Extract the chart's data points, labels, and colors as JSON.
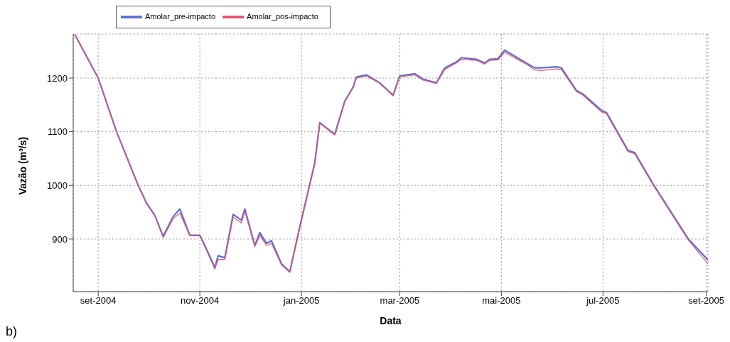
{
  "chart_data": {
    "type": "line",
    "xlabel": "Data",
    "ylabel": "Vazão (m³/s)",
    "x": [
      "2004-08-18",
      "2004-09-01",
      "2004-09-12",
      "2004-09-25",
      "2004-09-30",
      "2004-10-05",
      "2004-10-10",
      "2004-10-16",
      "2004-10-20",
      "2004-10-26",
      "2004-11-01",
      "2004-11-04",
      "2004-11-10",
      "2004-11-12",
      "2004-11-16",
      "2004-11-21",
      "2004-11-26",
      "2004-11-28",
      "2004-12-04",
      "2004-12-07",
      "2004-12-11",
      "2004-12-14",
      "2004-12-20",
      "2004-12-25",
      "2004-12-31",
      "2005-01-09",
      "2005-01-12",
      "2005-01-21",
      "2005-01-27",
      "2005-02-01",
      "2005-02-03",
      "2005-02-09",
      "2005-02-17",
      "2005-02-25",
      "2005-03-01",
      "2005-03-10",
      "2005-03-15",
      "2005-03-23",
      "2005-03-28",
      "2005-04-04",
      "2005-04-07",
      "2005-04-16",
      "2005-04-21",
      "2005-04-24",
      "2005-04-29",
      "2005-05-03",
      "2005-05-16",
      "2005-05-21",
      "2005-05-25",
      "2005-06-03",
      "2005-06-06",
      "2005-06-15",
      "2005-06-19",
      "2005-06-30",
      "2005-07-03",
      "2005-07-16",
      "2005-07-20",
      "2005-07-31",
      "2005-08-21",
      "2005-09-02"
    ],
    "series": [
      {
        "name": "Amolar_pre-impacto",
        "color": "#5b6fd6",
        "values": [
          1281,
          1200,
          1100,
          1000,
          967,
          944,
          905,
          942,
          956,
          907,
          907,
          888,
          847,
          869,
          865,
          946,
          935,
          956,
          888,
          912,
          892,
          897,
          854,
          839,
          923,
          1042,
          1117,
          1095,
          1157,
          1183,
          1202,
          1206,
          1191,
          1168,
          1204,
          1208,
          1198,
          1191,
          1219,
          1230,
          1238,
          1235,
          1228,
          1235,
          1236,
          1252,
          1228,
          1219,
          1219,
          1221,
          1219,
          1177,
          1170,
          1140,
          1136,
          1065,
          1061,
          1003,
          901,
          861
        ]
      },
      {
        "name": "Amolar_pos-impacto",
        "color": "#e8506a",
        "values": [
          1281,
          1200,
          1100,
          1000,
          966,
          943,
          903,
          938,
          948,
          906,
          906,
          886,
          844,
          862,
          862,
          941,
          930,
          952,
          886,
          907,
          888,
          892,
          852,
          838,
          921,
          1040,
          1116,
          1094,
          1156,
          1182,
          1200,
          1204,
          1190,
          1167,
          1202,
          1206,
          1196,
          1190,
          1216,
          1228,
          1235,
          1233,
          1226,
          1233,
          1234,
          1248,
          1226,
          1215,
          1214,
          1217,
          1216,
          1175,
          1168,
          1137,
          1134,
          1063,
          1059,
          1001,
          899,
          854
        ]
      }
    ],
    "xlim": [
      "2004-08-17",
      "2005-09-02"
    ],
    "xticks": [
      {
        "value": "2004-09-01",
        "label": "set-2004"
      },
      {
        "value": "2004-11-01",
        "label": "nov-2004"
      },
      {
        "value": "2005-01-01",
        "label": "jan-2005"
      },
      {
        "value": "2005-03-01",
        "label": "mar-2005"
      },
      {
        "value": "2005-05-01",
        "label": "mai-2005"
      },
      {
        "value": "2005-07-01",
        "label": "jul-2005"
      },
      {
        "value": "2005-09-01",
        "label": "set-2005"
      }
    ],
    "ylim": [
      802,
      1282
    ],
    "yticks": [
      900,
      1000,
      1100,
      1200
    ],
    "grid": true,
    "legend": "top left",
    "marker": "none",
    "line_style": "solid",
    "annotations": [
      "b)"
    ]
  }
}
